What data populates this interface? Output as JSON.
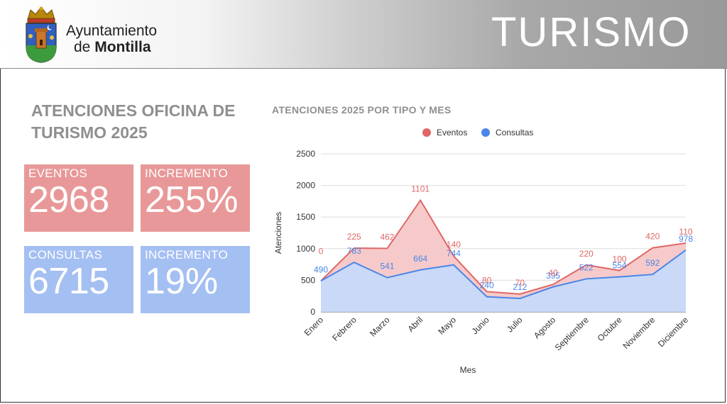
{
  "header": {
    "org_line1": "Ayuntamiento",
    "org_line2_prefix": "de",
    "org_line2_name": "Montilla",
    "section_title": "TURISMO"
  },
  "summary": {
    "title_line1": "ATENCIONES OFICINA DE",
    "title_line2": "TURISMO 2025",
    "cards": [
      {
        "label": "EVENTOS",
        "value": "2968",
        "color": "#e89898"
      },
      {
        "label": "INCREMENTO",
        "value": "255%",
        "color": "#e89898"
      },
      {
        "label": "CONSULTAS",
        "value": "6715",
        "color": "#a4bff2"
      },
      {
        "label": "INCREMENTO",
        "value": "19%",
        "color": "#a4bff2"
      }
    ]
  },
  "chart_data": {
    "type": "area",
    "stacked": true,
    "title": "ATENCIONES 2025 POR TIPO Y MES",
    "xlabel": "Mes",
    "ylabel": "Atenciones",
    "ylim": [
      0,
      2500
    ],
    "yticks": [
      0,
      500,
      1000,
      1500,
      2000,
      2500
    ],
    "grid": true,
    "legend_position": "top",
    "categories": [
      "Enero",
      "Febrero",
      "Marzo",
      "Abril",
      "Mayo",
      "Junio",
      "Julio",
      "Agosto",
      "Septiembre",
      "Octubre",
      "Noviembre",
      "Diciembre"
    ],
    "series": [
      {
        "name": "Consultas",
        "color": "#4a86e8",
        "fill": "#c9d9f7",
        "values": [
          490,
          783,
          541,
          664,
          744,
          240,
          212,
          395,
          522,
          554,
          592,
          978
        ]
      },
      {
        "name": "Eventos",
        "color": "#e06666",
        "fill": "#f6caca",
        "values": [
          0,
          225,
          462,
          1101,
          140,
          80,
          70,
          40,
          220,
          100,
          420,
          110
        ]
      }
    ]
  }
}
